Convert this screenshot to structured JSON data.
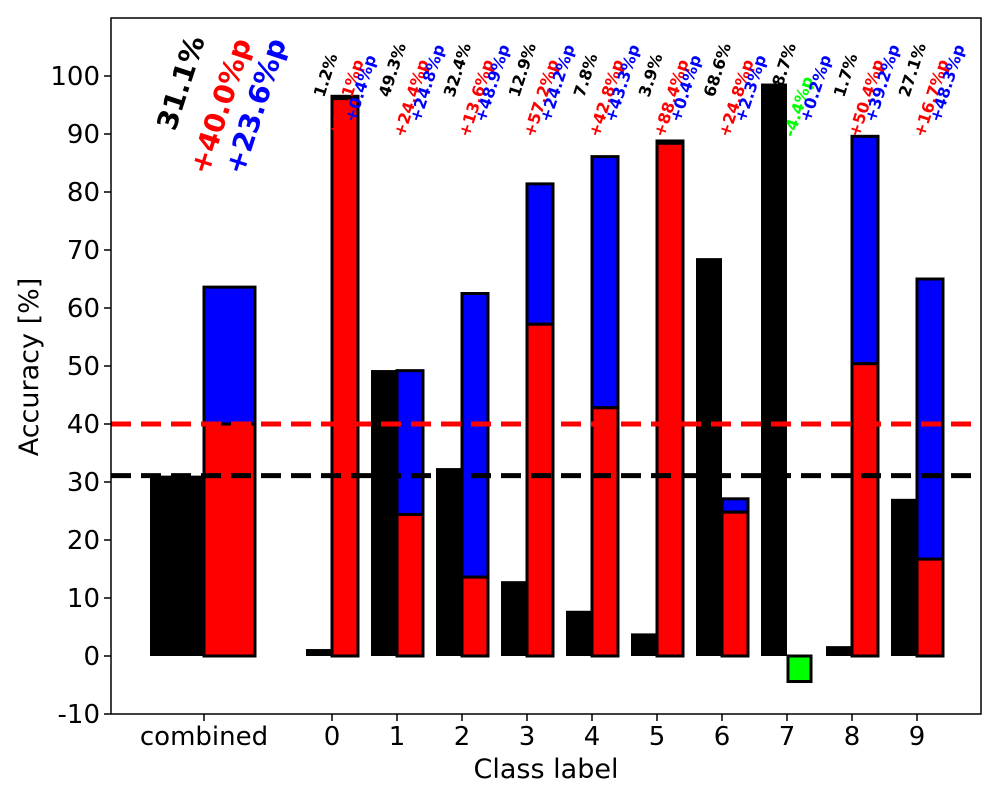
{
  "chart_data": {
    "type": "bar",
    "xlabel": "Class label",
    "ylabel": "Accuracy [%]",
    "ylim": [
      -10,
      110
    ],
    "yticks": [
      -10,
      0,
      10,
      20,
      30,
      40,
      50,
      60,
      70,
      80,
      90,
      100
    ],
    "grid": false,
    "colors": {
      "baseline": "#000000",
      "method_a": "#ff0000",
      "method_b": "#0000ff",
      "negative": "#00ff00"
    },
    "reference_lines": [
      {
        "name": "baseline-mean",
        "value": 31.1,
        "color": "#000000",
        "style": "dashed"
      },
      {
        "name": "method-a-mean",
        "value": 40.0,
        "color": "#ff0000",
        "style": "dashed"
      }
    ],
    "combined": {
      "label": "combined",
      "baseline": 31.1,
      "method_a": 40.0,
      "method_b": 63.6,
      "annotation": {
        "baseline": "31.1%",
        "method_a": "+40.0%p",
        "method_b": "+23.6%p"
      }
    },
    "classes": [
      {
        "label": "0",
        "baseline": 1.2,
        "method_a": 96.1,
        "method_b": 96.5,
        "annotation": {
          "baseline": "1.2%",
          "method_a": "+96.1%p",
          "method_b": "+0.4%p"
        }
      },
      {
        "label": "1",
        "baseline": 49.3,
        "method_a": 24.4,
        "method_b": 49.2,
        "annotation": {
          "baseline": "49.3%",
          "method_a": "+24.4%p",
          "method_b": "+24.8%p"
        }
      },
      {
        "label": "2",
        "baseline": 32.4,
        "method_a": 13.6,
        "method_b": 62.5,
        "annotation": {
          "baseline": "32.4%",
          "method_a": "+13.6%p",
          "method_b": "+48.9%p"
        }
      },
      {
        "label": "3",
        "baseline": 12.9,
        "method_a": 57.2,
        "method_b": 81.4,
        "annotation": {
          "baseline": "12.9%",
          "method_a": "+57.2%p",
          "method_b": "+24.2%p"
        }
      },
      {
        "label": "4",
        "baseline": 7.8,
        "method_a": 42.8,
        "method_b": 86.1,
        "annotation": {
          "baseline": "7.8%",
          "method_a": "+42.8%p",
          "method_b": "+43.3%p"
        }
      },
      {
        "label": "5",
        "baseline": 3.9,
        "method_a": 88.4,
        "method_b": 88.8,
        "annotation": {
          "baseline": "3.9%",
          "method_a": "+88.4%p",
          "method_b": "+0.4%p"
        }
      },
      {
        "label": "6",
        "baseline": 68.6,
        "method_a": 24.8,
        "method_b": 27.1,
        "annotation": {
          "baseline": "68.6%",
          "method_a": "+24.8%p",
          "method_b": "+2.3%p"
        }
      },
      {
        "label": "7",
        "baseline": 98.7,
        "method_a": -4.4,
        "method_b": -4.2,
        "annotation": {
          "baseline": "98.7%",
          "method_a": "-4.4%p",
          "method_b": "+0.2%p"
        },
        "negative": true
      },
      {
        "label": "8",
        "baseline": 1.7,
        "method_a": 50.4,
        "method_b": 89.6,
        "annotation": {
          "baseline": "1.7%",
          "method_a": "+50.4%p",
          "method_b": "+39.2%p"
        }
      },
      {
        "label": "9",
        "baseline": 27.1,
        "method_a": 16.7,
        "method_b": 65.0,
        "annotation": {
          "baseline": "27.1%",
          "method_a": "+16.7%p",
          "method_b": "+48.3%p"
        }
      }
    ]
  }
}
